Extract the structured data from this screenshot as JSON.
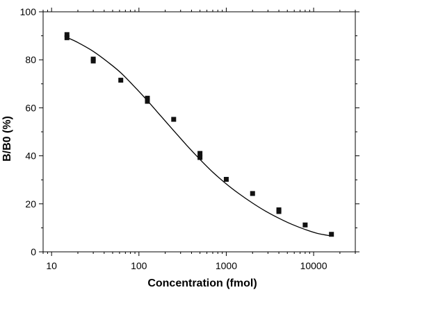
{
  "chart_data": {
    "type": "scatter",
    "title": "",
    "xlabel": "Concentration (fmol)",
    "ylabel": "B/B0 (%)",
    "xscale": "log",
    "xlim": [
      8,
      30000
    ],
    "ylim": [
      0,
      100
    ],
    "x_ticks": [
      10,
      100,
      1000,
      10000
    ],
    "x_tick_labels": [
      "10",
      "100",
      "1000",
      "10000"
    ],
    "y_ticks": [
      0,
      20,
      40,
      60,
      80,
      100
    ],
    "y_tick_labels": [
      "0",
      "20",
      "40",
      "60",
      "80",
      "100"
    ],
    "grid": false,
    "colors": {
      "marker": "#111111",
      "line": "#000000",
      "axes": "#000000"
    },
    "series": [
      {
        "marker": "square",
        "points": [
          [
            15,
            90.5
          ],
          [
            15,
            89.2
          ],
          [
            30,
            80.3
          ],
          [
            30,
            79.5
          ],
          [
            62,
            71.5
          ],
          [
            125,
            64.0
          ],
          [
            125,
            62.7
          ],
          [
            250,
            55.2
          ],
          [
            500,
            41.0
          ],
          [
            500,
            39.3
          ],
          [
            1000,
            30.2
          ],
          [
            2000,
            24.3
          ],
          [
            4000,
            17.5
          ],
          [
            4000,
            16.8
          ],
          [
            8000,
            11.2
          ],
          [
            16000,
            7.3
          ]
        ]
      }
    ],
    "fit_curve": {
      "style": "solid",
      "points": [
        [
          15,
          89.3
        ],
        [
          20,
          87.2
        ],
        [
          30,
          83.5
        ],
        [
          45,
          78.8
        ],
        [
          62,
          74.6
        ],
        [
          90,
          68.6
        ],
        [
          125,
          63.0
        ],
        [
          180,
          56.4
        ],
        [
          250,
          50.5
        ],
        [
          350,
          44.5
        ],
        [
          500,
          38.5
        ],
        [
          700,
          33.2
        ],
        [
          1000,
          28.3
        ],
        [
          1400,
          24.2
        ],
        [
          2000,
          20.3
        ],
        [
          2800,
          17.0
        ],
        [
          4000,
          14.0
        ],
        [
          5600,
          11.5
        ],
        [
          8000,
          9.3
        ],
        [
          11000,
          7.7
        ],
        [
          16000,
          6.6
        ]
      ]
    }
  }
}
